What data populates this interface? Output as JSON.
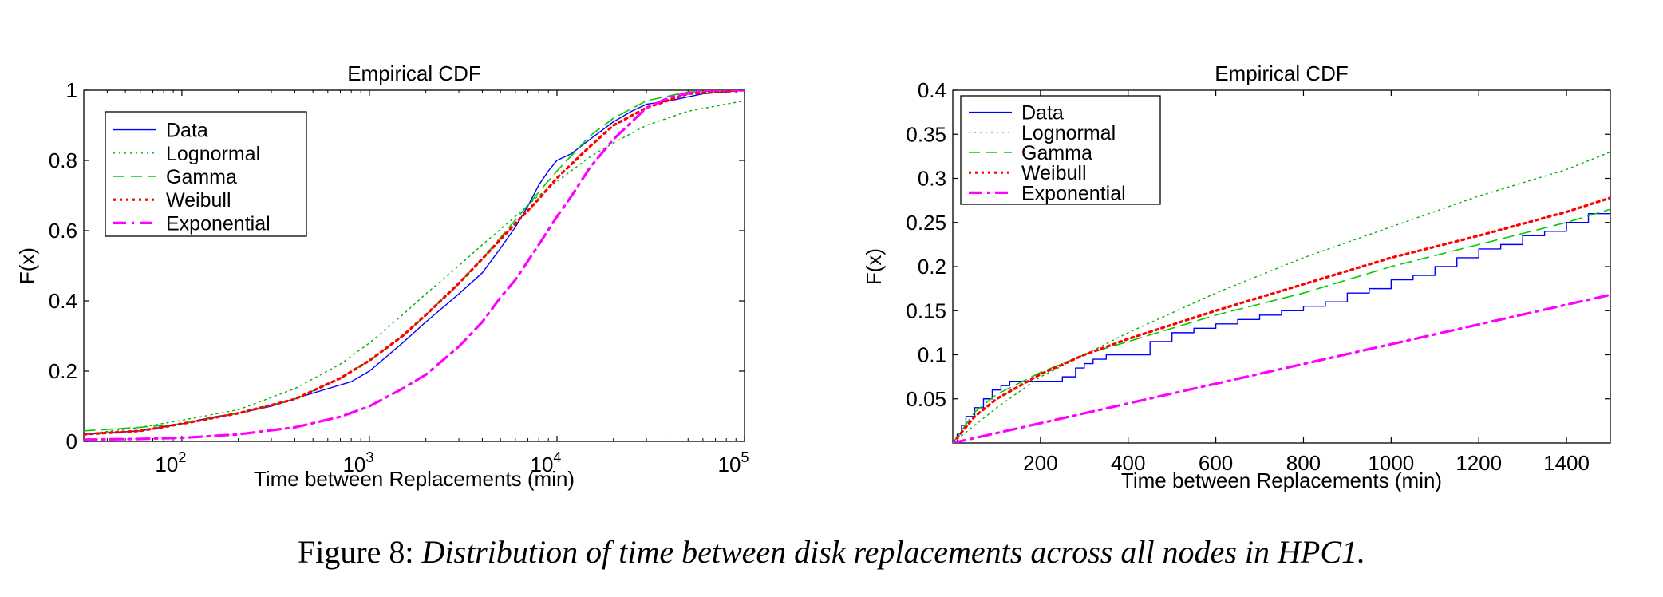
{
  "chart_data": [
    {
      "type": "line",
      "title": "Empirical CDF",
      "xlabel": "Time between Replacements (min)",
      "ylabel": "F(x)",
      "xscale": "log",
      "xlim": [
        30,
        100000
      ],
      "ylim": [
        0,
        1
      ],
      "xticks": [
        100,
        1000,
        10000,
        100000
      ],
      "xticklabels": [
        {
          "base": "10",
          "exp": "2"
        },
        {
          "base": "10",
          "exp": "3"
        },
        {
          "base": "10",
          "exp": "4"
        },
        {
          "base": "10",
          "exp": "5"
        }
      ],
      "yticks": [
        0,
        0.2,
        0.4,
        0.6,
        0.8,
        1
      ],
      "yticklabels": [
        "0",
        "0.2",
        "0.4",
        "0.6",
        "0.8",
        "1"
      ],
      "legend_position": "top-left",
      "series": [
        {
          "name": "Data",
          "style": "solid",
          "color": "#0000ff",
          "x": [
            30,
            60,
            100,
            150,
            200,
            300,
            450,
            600,
            800,
            1000,
            1500,
            2000,
            3000,
            4000,
            5000,
            6000,
            7000,
            8000,
            9000,
            10000,
            12000,
            15000,
            20000,
            25000,
            30000,
            40000,
            60000,
            100000
          ],
          "y": [
            0.02,
            0.03,
            0.05,
            0.07,
            0.08,
            0.1,
            0.13,
            0.15,
            0.17,
            0.2,
            0.28,
            0.34,
            0.42,
            0.48,
            0.55,
            0.61,
            0.67,
            0.73,
            0.77,
            0.8,
            0.82,
            0.86,
            0.91,
            0.94,
            0.96,
            0.97,
            0.99,
            1.0
          ]
        },
        {
          "name": "Lognormal",
          "style": "dotted",
          "color": "#00b000",
          "x": [
            30,
            60,
            100,
            200,
            400,
            700,
            1000,
            1500,
            2000,
            3000,
            4000,
            6000,
            8000,
            10000,
            15000,
            20000,
            30000,
            50000,
            100000
          ],
          "y": [
            0.02,
            0.04,
            0.06,
            0.09,
            0.15,
            0.22,
            0.28,
            0.36,
            0.42,
            0.5,
            0.56,
            0.64,
            0.7,
            0.74,
            0.81,
            0.85,
            0.9,
            0.94,
            0.97
          ]
        },
        {
          "name": "Gamma",
          "style": "dashed",
          "color": "#00cc00",
          "x": [
            30,
            60,
            100,
            200,
            400,
            700,
            1000,
            1500,
            2000,
            3000,
            4000,
            6000,
            8000,
            10000,
            15000,
            20000,
            30000,
            50000,
            100000
          ],
          "y": [
            0.03,
            0.04,
            0.05,
            0.08,
            0.12,
            0.18,
            0.23,
            0.3,
            0.36,
            0.45,
            0.52,
            0.63,
            0.71,
            0.77,
            0.87,
            0.92,
            0.97,
            0.995,
            1.0
          ]
        },
        {
          "name": "Weibull",
          "style": "dotted-thick",
          "color": "#ff0000",
          "x": [
            30,
            60,
            100,
            200,
            400,
            700,
            1000,
            1500,
            2000,
            3000,
            4000,
            6000,
            8000,
            10000,
            15000,
            20000,
            30000,
            50000,
            100000
          ],
          "y": [
            0.02,
            0.03,
            0.05,
            0.08,
            0.12,
            0.18,
            0.23,
            0.3,
            0.36,
            0.45,
            0.52,
            0.62,
            0.69,
            0.75,
            0.84,
            0.9,
            0.95,
            0.99,
            1.0
          ]
        },
        {
          "name": "Exponential",
          "style": "dashdot",
          "color": "#ff00ff",
          "x": [
            30,
            60,
            100,
            200,
            400,
            700,
            1000,
            1500,
            2000,
            3000,
            4000,
            5000,
            6000,
            8000,
            10000,
            12000,
            15000,
            20000,
            30000,
            40000,
            60000,
            100000
          ],
          "y": [
            0.005,
            0.007,
            0.01,
            0.02,
            0.04,
            0.07,
            0.1,
            0.15,
            0.19,
            0.27,
            0.34,
            0.41,
            0.46,
            0.56,
            0.64,
            0.7,
            0.78,
            0.86,
            0.95,
            0.98,
            1.0,
            1.0
          ]
        }
      ]
    },
    {
      "type": "line",
      "title": "Empirical CDF",
      "xlabel": "Time between Replacements (min)",
      "ylabel": "F(x)",
      "xscale": "linear",
      "xlim": [
        0,
        1500
      ],
      "ylim": [
        0,
        0.4
      ],
      "xticks": [
        200,
        400,
        600,
        800,
        1000,
        1200,
        1400
      ],
      "xticklabels": [
        "200",
        "400",
        "600",
        "800",
        "1000",
        "1200",
        "1400"
      ],
      "yticks": [
        0.05,
        0.1,
        0.15,
        0.2,
        0.25,
        0.3,
        0.35,
        0.4
      ],
      "yticklabels": [
        "0.05",
        "0.1",
        "0.15",
        "0.2",
        "0.25",
        "0.3",
        "0.35",
        "0.4"
      ],
      "legend_position": "top-left",
      "series": [
        {
          "name": "Data",
          "style": "step",
          "color": "#0000ff",
          "x": [
            0,
            10,
            20,
            30,
            50,
            70,
            90,
            110,
            130,
            150,
            200,
            250,
            280,
            300,
            320,
            350,
            400,
            450,
            500,
            550,
            600,
            650,
            700,
            750,
            800,
            850,
            900,
            950,
            1000,
            1050,
            1100,
            1150,
            1200,
            1250,
            1300,
            1350,
            1400,
            1450,
            1500
          ],
          "y": [
            0.0,
            0.01,
            0.02,
            0.03,
            0.04,
            0.05,
            0.06,
            0.065,
            0.07,
            0.07,
            0.07,
            0.075,
            0.085,
            0.09,
            0.095,
            0.1,
            0.1,
            0.115,
            0.125,
            0.13,
            0.135,
            0.14,
            0.145,
            0.15,
            0.155,
            0.16,
            0.17,
            0.175,
            0.185,
            0.19,
            0.2,
            0.21,
            0.22,
            0.225,
            0.235,
            0.24,
            0.25,
            0.26,
            0.265
          ]
        },
        {
          "name": "Lognormal",
          "style": "dotted",
          "color": "#00b000",
          "x": [
            0,
            50,
            100,
            200,
            300,
            400,
            600,
            800,
            1000,
            1200,
            1400,
            1500
          ],
          "y": [
            0.0,
            0.02,
            0.04,
            0.075,
            0.1,
            0.125,
            0.17,
            0.21,
            0.245,
            0.28,
            0.31,
            0.33
          ]
        },
        {
          "name": "Gamma",
          "style": "dashed",
          "color": "#00cc00",
          "x": [
            0,
            50,
            100,
            200,
            300,
            400,
            600,
            800,
            1000,
            1200,
            1400,
            1500
          ],
          "y": [
            0.0,
            0.035,
            0.055,
            0.08,
            0.1,
            0.115,
            0.145,
            0.17,
            0.2,
            0.225,
            0.25,
            0.265
          ]
        },
        {
          "name": "Weibull",
          "style": "dotted-thick",
          "color": "#ff0000",
          "x": [
            0,
            50,
            100,
            200,
            300,
            400,
            600,
            800,
            1000,
            1200,
            1400,
            1500
          ],
          "y": [
            0.0,
            0.03,
            0.05,
            0.078,
            0.1,
            0.118,
            0.15,
            0.18,
            0.21,
            0.235,
            0.262,
            0.278
          ]
        },
        {
          "name": "Exponential",
          "style": "dashdot",
          "color": "#ff00ff",
          "x": [
            0,
            1500
          ],
          "y": [
            0.0,
            0.168
          ]
        }
      ]
    }
  ],
  "caption": {
    "label": "Figure 8:",
    "text": "Distribution of time between disk replacements across all nodes in HPC1."
  }
}
